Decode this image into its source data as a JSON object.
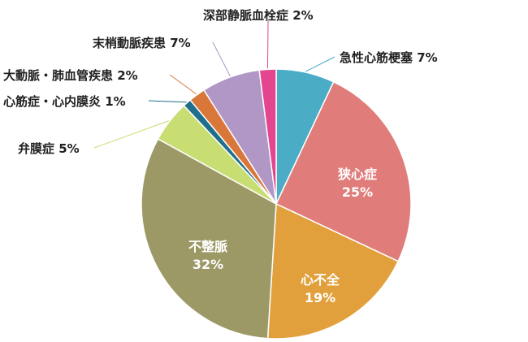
{
  "chart_data": {
    "type": "pie",
    "title": "",
    "slices": [
      {
        "name": "急性心筋梗塞",
        "value": 7,
        "label": "7%",
        "color": "#4bacc6",
        "label_position": "outside"
      },
      {
        "name": "狭心症",
        "value": 25,
        "label": "25%",
        "color": "#e07d7b",
        "label_position": "inside"
      },
      {
        "name": "心不全",
        "value": 19,
        "label": "19%",
        "color": "#e2a03c",
        "label_position": "inside"
      },
      {
        "name": "不整脈",
        "value": 32,
        "label": "32%",
        "color": "#9c9966",
        "label_position": "inside"
      },
      {
        "name": "弁膜症",
        "value": 5,
        "label": "5%",
        "color": "#c8dd72",
        "label_position": "outside"
      },
      {
        "name": "心筋症・心内膜炎",
        "value": 1,
        "label": "1%",
        "color": "#1f6e8c",
        "label_position": "outside"
      },
      {
        "name": "大動脈・肺血管疾患",
        "value": 2,
        "label": "2%",
        "color": "#d9773b",
        "label_position": "outside"
      },
      {
        "name": "末梢動脈疾患",
        "value": 7,
        "label": "7%",
        "color": "#b097c6",
        "label_position": "outside"
      },
      {
        "name": "深部静脈血栓症",
        "value": 2,
        "label": "2%",
        "color": "#e4458f",
        "label_position": "outside"
      }
    ]
  }
}
